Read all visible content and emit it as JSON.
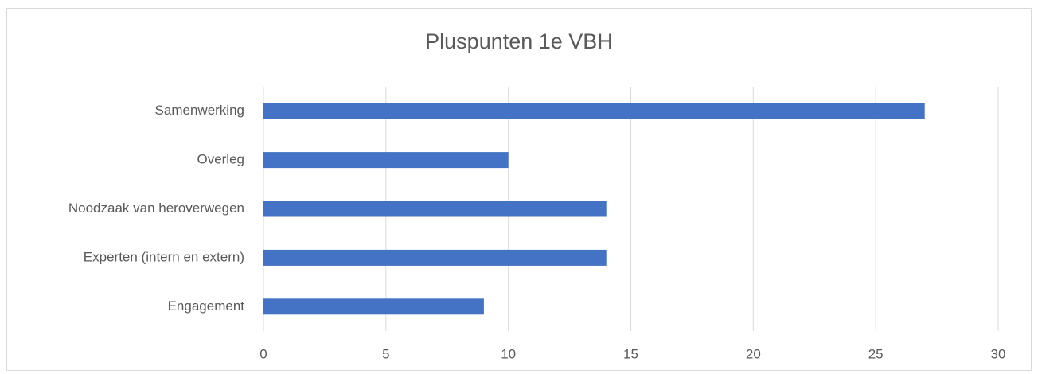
{
  "chart_data": {
    "type": "bar",
    "orientation": "horizontal",
    "title": "Pluspunten 1e VBH",
    "categories": [
      "Samenwerking",
      "Overleg",
      "Noodzaak van heroverwegen",
      "Experten (intern en extern)",
      "Engagement"
    ],
    "values": [
      27,
      10,
      14,
      14,
      9
    ],
    "color": "#4472c4",
    "xlim": [
      0,
      30
    ],
    "xticks": [
      0,
      5,
      10,
      15,
      20,
      25,
      30
    ],
    "grid": true
  }
}
